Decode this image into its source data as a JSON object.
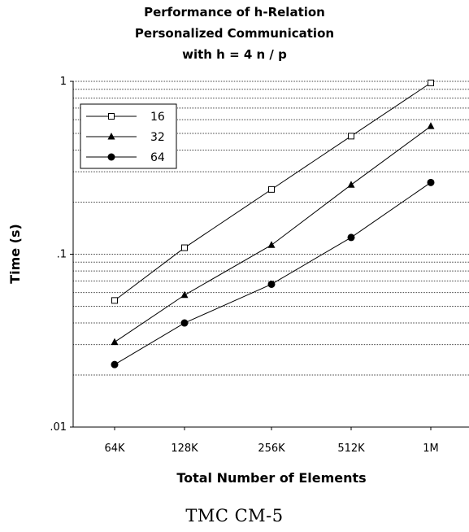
{
  "chart_data": {
    "type": "line",
    "title": [
      "Performance of h-Relation",
      "Personalized Communication",
      "with  h = 4 n / p"
    ],
    "xlabel": "Total Number of Elements",
    "ylabel": "Time  (s)",
    "categories": [
      "64K",
      "128K",
      "256K",
      "512K",
      "1M"
    ],
    "yscale": "log",
    "ylim": [
      0.01,
      1
    ],
    "yticks": [
      {
        "value": 0.01,
        "label": ".01"
      },
      {
        "value": 0.1,
        "label": ".1"
      },
      {
        "value": 1,
        "label": "1"
      }
    ],
    "grid": "horizontal dotted at minor and major decades",
    "legend": "upper-left",
    "series": [
      {
        "name": "16",
        "marker": "open-square",
        "values": [
          0.054,
          0.109,
          0.237,
          0.482,
          0.98
        ]
      },
      {
        "name": "32",
        "marker": "filled-triangle",
        "values": [
          0.031,
          0.058,
          0.113,
          0.252,
          0.55
        ]
      },
      {
        "name": "64",
        "marker": "filled-circle",
        "values": [
          0.023,
          0.04,
          0.067,
          0.125,
          0.26
        ]
      }
    ]
  },
  "caption": "TMC CM-5"
}
